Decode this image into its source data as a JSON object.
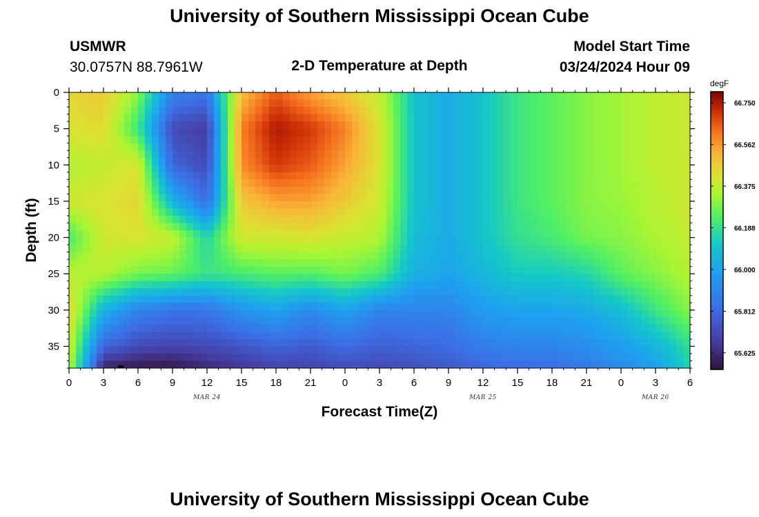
{
  "header": {
    "title": "University of Southern Mississippi Ocean Cube",
    "station_id": "USMWR",
    "station_coords": "30.0757N  88.7961W",
    "plot_title": "2-D Temperature at Depth",
    "model_start_label": "Model Start Time",
    "model_start_value": "03/24/2024 Hour 09"
  },
  "footer": {
    "title": "University of Southern Mississippi Ocean Cube"
  },
  "chart_data": {
    "type": "heatmap",
    "title": "2-D Temperature at Depth",
    "xlabel": "Forecast Time(Z)",
    "ylabel": "Depth (ft)",
    "x_range_hours": [
      0,
      54
    ],
    "y_range_ft": [
      0,
      38
    ],
    "y_inverted": true,
    "x_tick_labels": [
      "0",
      "3",
      "6",
      "9",
      "12",
      "15",
      "18",
      "21",
      "0",
      "3",
      "6",
      "9",
      "12",
      "15",
      "18",
      "21",
      "0",
      "3",
      "6"
    ],
    "x_tick_hours": [
      0,
      3,
      6,
      9,
      12,
      15,
      18,
      21,
      24,
      27,
      30,
      33,
      36,
      39,
      42,
      45,
      48,
      51,
      54
    ],
    "y_ticks": [
      0,
      5,
      10,
      15,
      20,
      25,
      30,
      35
    ],
    "y_tick_labels": [
      "0",
      "5",
      "10",
      "15",
      "20",
      "25",
      "30",
      "35"
    ],
    "date_labels": [
      {
        "text": "MAR 24",
        "hour": 12
      },
      {
        "text": "MAR 25",
        "hour": 36
      },
      {
        "text": "MAR 26",
        "hour": 51
      }
    ],
    "colorbar": {
      "units": "degF",
      "min": 65.55,
      "max": 66.8,
      "tick_values": [
        66.75,
        66.562,
        66.375,
        66.188,
        66.0,
        65.812,
        65.625
      ],
      "tick_labels": [
        "66.750",
        "66.562",
        "66.375",
        "66.188",
        "66.000",
        "65.812",
        "65.625"
      ]
    },
    "grid": {
      "hours": [
        0,
        3,
        6,
        9,
        12,
        15,
        18,
        21,
        24,
        27,
        30,
        33,
        36,
        39,
        42,
        45,
        48,
        51,
        54
      ],
      "depths_ft": [
        0,
        5,
        10,
        15,
        20,
        25,
        30,
        35,
        38
      ],
      "values_degF": [
        [
          66.45,
          66.42,
          66.35,
          66.4,
          66.22,
          66.36,
          66.45,
          66.4,
          66.38
        ],
        [
          66.48,
          66.44,
          66.38,
          66.42,
          66.4,
          66.36,
          66.05,
          65.8,
          65.6
        ],
        [
          66.3,
          66.2,
          66.42,
          66.45,
          66.42,
          66.28,
          65.9,
          65.72,
          65.57
        ],
        [
          65.9,
          65.72,
          65.8,
          66.05,
          66.38,
          66.26,
          65.85,
          65.7,
          65.57
        ],
        [
          65.85,
          65.68,
          65.72,
          65.82,
          66.15,
          66.2,
          65.85,
          65.72,
          65.62
        ],
        [
          66.5,
          66.6,
          66.58,
          66.48,
          66.4,
          66.22,
          65.95,
          65.75,
          65.66
        ],
        [
          66.65,
          66.75,
          66.7,
          66.55,
          66.4,
          66.25,
          66.0,
          65.8,
          65.7
        ],
        [
          66.55,
          66.7,
          66.65,
          66.55,
          66.42,
          66.24,
          65.92,
          65.77,
          65.7
        ],
        [
          66.48,
          66.6,
          66.55,
          66.48,
          66.38,
          66.28,
          66.0,
          65.82,
          65.73
        ],
        [
          66.38,
          66.42,
          66.42,
          66.4,
          66.35,
          66.23,
          65.9,
          65.78,
          65.72
        ],
        [
          66.1,
          66.1,
          66.1,
          66.1,
          66.08,
          66.04,
          65.9,
          65.8,
          65.74
        ],
        [
          66.02,
          66.02,
          66.02,
          66.02,
          66.02,
          66.0,
          65.9,
          65.82,
          65.76
        ],
        [
          66.1,
          66.1,
          66.1,
          66.1,
          66.1,
          66.06,
          65.98,
          65.88,
          65.8
        ],
        [
          66.2,
          66.2,
          66.2,
          66.2,
          66.18,
          66.12,
          66.0,
          65.9,
          65.82
        ],
        [
          66.25,
          66.25,
          66.25,
          66.25,
          66.22,
          66.12,
          66.0,
          65.9,
          65.83
        ],
        [
          66.3,
          66.3,
          66.3,
          66.3,
          66.28,
          66.15,
          66.02,
          65.93,
          65.86
        ],
        [
          66.33,
          66.33,
          66.33,
          66.32,
          66.3,
          66.25,
          66.08,
          65.98,
          65.92
        ],
        [
          66.37,
          66.37,
          66.37,
          66.36,
          66.34,
          66.3,
          66.2,
          66.05,
          65.98
        ],
        [
          66.4,
          66.4,
          66.4,
          66.4,
          66.38,
          66.35,
          66.3,
          66.18,
          66.15
        ]
      ]
    }
  }
}
